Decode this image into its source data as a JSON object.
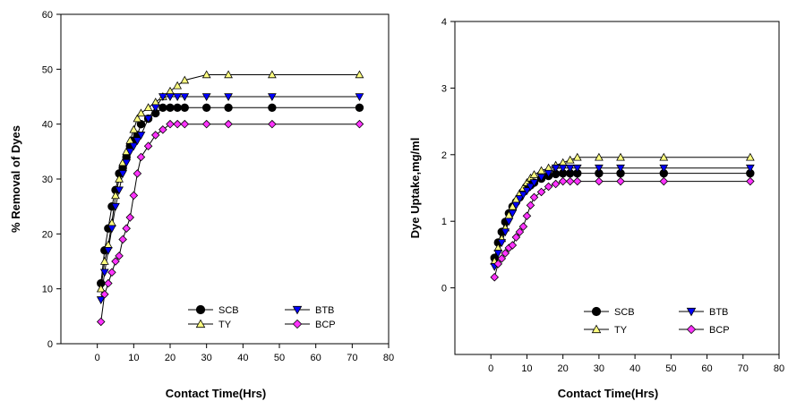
{
  "chart_data": [
    {
      "type": "line",
      "xlabel": "Contact Time(Hrs)",
      "ylabel": "% Removal of Dyes",
      "xlim": [
        -10,
        80
      ],
      "ylim": [
        0,
        60
      ],
      "xticks": [
        0,
        10,
        20,
        30,
        40,
        50,
        60,
        70,
        80
      ],
      "yticks": [
        0,
        10,
        20,
        30,
        40,
        50,
        60
      ],
      "legend": "bottom-right",
      "series": [
        {
          "name": "SCB",
          "marker": "circle",
          "color": "#000000",
          "x": [
            1,
            2,
            3,
            4,
            5,
            6,
            7,
            8,
            9,
            10,
            11,
            12,
            14,
            16,
            18,
            20,
            22,
            24,
            30,
            36,
            48,
            72
          ],
          "y": [
            11,
            17,
            21,
            25,
            28,
            31,
            32,
            34,
            36,
            37,
            38,
            40,
            41,
            42,
            43,
            43,
            43,
            43,
            43,
            43,
            43,
            43
          ]
        },
        {
          "name": "TY",
          "marker": "triangle-up",
          "color": "#ffff80",
          "x": [
            1,
            2,
            3,
            4,
            5,
            6,
            7,
            8,
            9,
            10,
            11,
            12,
            14,
            16,
            18,
            20,
            22,
            24,
            30,
            36,
            48,
            72
          ],
          "y": [
            10,
            15,
            18,
            22,
            27,
            30,
            33,
            35,
            37,
            39,
            41,
            42,
            43,
            44,
            45,
            46,
            47,
            48,
            49,
            49,
            49,
            49
          ]
        },
        {
          "name": "BTB",
          "marker": "triangle-down",
          "color": "#0000ff",
          "x": [
            1,
            2,
            3,
            4,
            5,
            6,
            7,
            8,
            9,
            10,
            11,
            12,
            14,
            16,
            18,
            20,
            22,
            24,
            30,
            36,
            48,
            72
          ],
          "y": [
            8,
            13,
            17,
            21,
            25,
            28,
            31,
            33,
            35,
            36,
            37,
            38,
            41,
            43,
            45,
            45,
            45,
            45,
            45,
            45,
            45,
            45
          ]
        },
        {
          "name": "BCP",
          "marker": "diamond",
          "color": "#ff33ff",
          "x": [
            1,
            2,
            3,
            4,
            5,
            6,
            7,
            8,
            9,
            10,
            11,
            12,
            14,
            16,
            18,
            20,
            22,
            24,
            30,
            36,
            48,
            72
          ],
          "y": [
            4,
            9,
            11,
            13,
            15,
            16,
            19,
            21,
            23,
            27,
            31,
            34,
            36,
            38,
            39,
            40,
            40,
            40,
            40,
            40,
            40,
            40
          ]
        }
      ]
    },
    {
      "type": "line",
      "xlabel": "Contact Time(Hrs)",
      "ylabel": "Dye Uptake,mg/ml",
      "xlim": [
        -10,
        80
      ],
      "ylim": [
        -1,
        4
      ],
      "xticks": [
        0,
        10,
        20,
        30,
        40,
        50,
        60,
        70,
        80
      ],
      "yticks": [
        0,
        1,
        2,
        3,
        4
      ],
      "legend": "bottom-right",
      "series": [
        {
          "name": "SCB",
          "marker": "circle",
          "color": "#000000",
          "x": [
            1,
            2,
            3,
            4,
            5,
            6,
            7,
            8,
            9,
            10,
            11,
            12,
            14,
            16,
            18,
            20,
            22,
            24,
            30,
            36,
            48,
            72
          ],
          "y": [
            0.45,
            0.68,
            0.84,
            0.99,
            1.12,
            1.22,
            1.29,
            1.36,
            1.44,
            1.5,
            1.54,
            1.58,
            1.64,
            1.68,
            1.71,
            1.72,
            1.72,
            1.72,
            1.72,
            1.72,
            1.72,
            1.72
          ]
        },
        {
          "name": "TY",
          "marker": "triangle-up",
          "color": "#ffff80",
          "x": [
            1,
            2,
            3,
            4,
            5,
            6,
            7,
            8,
            9,
            10,
            11,
            12,
            14,
            16,
            18,
            20,
            22,
            24,
            30,
            36,
            48,
            72
          ],
          "y": [
            0.4,
            0.6,
            0.74,
            0.9,
            1.09,
            1.22,
            1.33,
            1.42,
            1.5,
            1.58,
            1.65,
            1.7,
            1.76,
            1.8,
            1.84,
            1.88,
            1.92,
            1.96,
            1.96,
            1.96,
            1.96,
            1.96
          ]
        },
        {
          "name": "BTB",
          "marker": "triangle-down",
          "color": "#0000ff",
          "x": [
            1,
            2,
            3,
            4,
            5,
            6,
            7,
            8,
            9,
            10,
            11,
            12,
            14,
            16,
            18,
            20,
            22,
            24,
            30,
            36,
            48,
            72
          ],
          "y": [
            0.32,
            0.52,
            0.68,
            0.84,
            1.0,
            1.12,
            1.24,
            1.34,
            1.4,
            1.46,
            1.52,
            1.58,
            1.66,
            1.72,
            1.8,
            1.8,
            1.8,
            1.8,
            1.8,
            1.8,
            1.8,
            1.8
          ]
        },
        {
          "name": "BCP",
          "marker": "diamond",
          "color": "#ff33ff",
          "x": [
            1,
            2,
            3,
            4,
            5,
            6,
            7,
            8,
            9,
            10,
            11,
            12,
            14,
            16,
            18,
            20,
            22,
            24,
            30,
            36,
            48,
            72
          ],
          "y": [
            0.16,
            0.36,
            0.44,
            0.52,
            0.6,
            0.64,
            0.76,
            0.84,
            0.92,
            1.08,
            1.24,
            1.36,
            1.44,
            1.52,
            1.56,
            1.6,
            1.6,
            1.6,
            1.6,
            1.6,
            1.6,
            1.6
          ]
        }
      ]
    }
  ]
}
